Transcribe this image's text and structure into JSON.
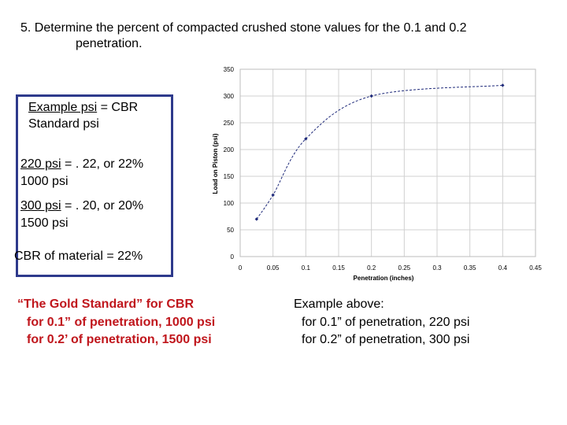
{
  "heading": {
    "line1": "5. Determine the percent of compacted crushed stone values for the 0.1 and 0.2",
    "line2": "penetration."
  },
  "box": {
    "example_under": "Example psi",
    "example_rest": " = CBR",
    "standard": "Standard psi",
    "calc1_under": "220 psi",
    "calc1_rest": " = . 22, or 22%",
    "calc1_den": "1000 psi",
    "calc2_under": "300 psi",
    "calc2_rest": " = . 20, or 20%",
    "calc2_den": "1500 psi",
    "cbr_result": "CBR of material = 22%"
  },
  "gold": {
    "title": "“The Gold Standard” for CBR",
    "line1": "for 0.1” of penetration, 1000 psi",
    "line2": "for 0.2’ of penetration, 1500 psi"
  },
  "example": {
    "title": "Example above:",
    "line1": "for 0.1” of penetration, 220 psi",
    "line2": "for 0.2” of penetration, 300 psi"
  },
  "colors": {
    "box_border": "#2e3a8c",
    "red_text": "#c0161c",
    "series": "#1f2a7a"
  },
  "chart_data": {
    "type": "line",
    "xlabel": "Penetration (inches)",
    "ylabel": "Load on Piston (psi)",
    "xlim": [
      0,
      0.45
    ],
    "ylim": [
      0,
      350
    ],
    "x_ticks": [
      "0",
      "0.05",
      "0.1",
      "0.15",
      "0.2",
      "0.25",
      "0.3",
      "0.35",
      "0.4",
      "0.45"
    ],
    "y_ticks": [
      "0",
      "50",
      "100",
      "150",
      "200",
      "250",
      "300",
      "350"
    ],
    "x_tick_values": [
      0,
      0.05,
      0.1,
      0.15,
      0.2,
      0.25,
      0.3,
      0.35,
      0.4,
      0.45
    ],
    "y_tick_values": [
      0,
      50,
      100,
      150,
      200,
      250,
      300,
      350
    ],
    "grid": true,
    "series": [
      {
        "x": [
          0.025,
          0.05,
          0.1,
          0.2,
          0.4
        ],
        "y": [
          70,
          115,
          220,
          300,
          320
        ]
      }
    ]
  }
}
